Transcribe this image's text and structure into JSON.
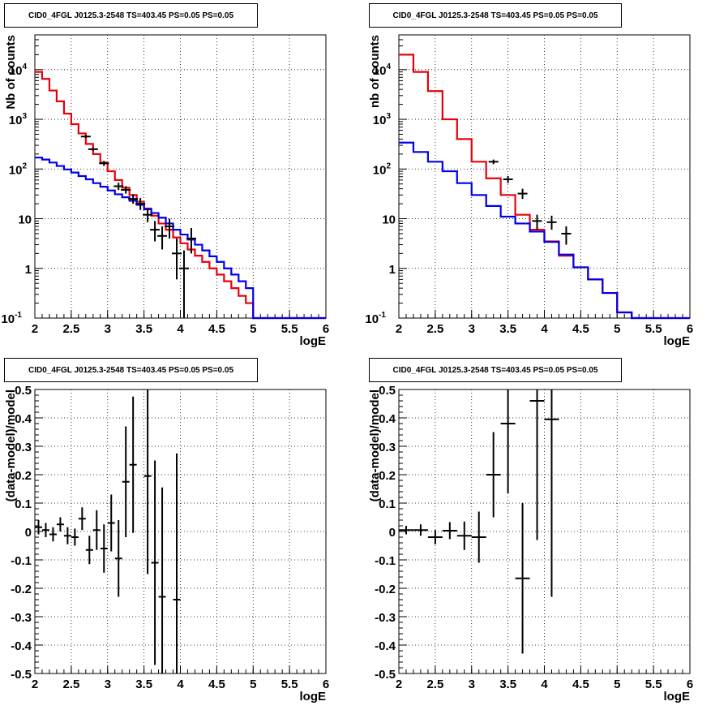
{
  "chart_data": [
    {
      "type": "line",
      "title": "CID0_4FGL J0125.3-2548 TS=403.45 PS=0.05 PS=0.05",
      "xlabel": "logE",
      "ylabel": "Nb of counts",
      "xlim": [
        2,
        6
      ],
      "ylim": [
        0.1,
        50000
      ],
      "yscale": "log",
      "grid": true,
      "xticks": [
        "2",
        "2.5",
        "3",
        "3.5",
        "4",
        "4.5",
        "5",
        "5.5",
        "6"
      ],
      "yticks": [
        "10^-1",
        "1",
        "10",
        "10^2",
        "10^3",
        "10^4"
      ],
      "bin_edges": [
        2.0,
        2.1,
        2.2,
        2.3,
        2.4,
        2.5,
        2.6,
        2.7,
        2.8,
        2.9,
        3.0,
        3.1,
        3.2,
        3.3,
        3.4,
        3.5,
        3.6,
        3.7,
        3.8,
        3.9,
        4.0,
        4.1,
        4.2,
        4.3,
        4.4,
        4.5,
        4.6,
        4.7,
        4.8,
        4.9,
        5.0,
        5.1,
        5.2,
        5.3,
        5.4,
        5.5,
        5.6,
        5.7,
        5.8,
        5.9,
        6.0
      ],
      "series": [
        {
          "color": "#e8000b",
          "values": [
            9000,
            6500,
            3800,
            2300,
            1300,
            800,
            520,
            320,
            200,
            135,
            90,
            60,
            42,
            30,
            22,
            16,
            11.5,
            8,
            6,
            4.2,
            3.2,
            2.4,
            1.8,
            1.35,
            1.0,
            0.75,
            0.55,
            0.4,
            0.28,
            0.2,
            0.1,
            0.1,
            0.1,
            0.1,
            0.1,
            0.1,
            0.1,
            0.1,
            0.1,
            0.1
          ]
        },
        {
          "color": "#0000e6",
          "values": [
            170,
            155,
            135,
            115,
            98,
            85,
            72,
            62,
            52,
            44,
            37,
            31,
            27,
            23,
            19,
            15.5,
            13,
            10.5,
            8,
            6,
            4.8,
            3.8,
            3.0,
            2.3,
            1.75,
            1.35,
            1.0,
            0.75,
            0.55,
            0.4,
            0.1,
            0.1,
            0.1,
            0.1,
            0.1,
            0.1,
            0.1,
            0.1,
            0.1,
            0.1
          ]
        }
      ],
      "data_points": [
        {
          "x": 2.7,
          "y": 450,
          "ylo": 420,
          "yhi": 480
        },
        {
          "x": 2.8,
          "y": 250,
          "ylo": 230,
          "yhi": 270
        },
        {
          "x": 2.95,
          "y": 130,
          "ylo": 115,
          "yhi": 145
        },
        {
          "x": 3.15,
          "y": 45,
          "ylo": 38,
          "yhi": 53
        },
        {
          "x": 3.25,
          "y": 38,
          "ylo": 32,
          "yhi": 45
        },
        {
          "x": 3.35,
          "y": 25,
          "ylo": 20,
          "yhi": 31
        },
        {
          "x": 3.45,
          "y": 20,
          "ylo": 15,
          "yhi": 26
        },
        {
          "x": 3.55,
          "y": 12,
          "ylo": 8.5,
          "yhi": 16
        },
        {
          "x": 3.65,
          "y": 6,
          "ylo": 3.5,
          "yhi": 9
        },
        {
          "x": 3.75,
          "y": 4.5,
          "ylo": 2.4,
          "yhi": 7
        },
        {
          "x": 3.85,
          "y": 7,
          "ylo": 4,
          "yhi": 10
        },
        {
          "x": 3.95,
          "y": 2,
          "ylo": 0.6,
          "yhi": 4
        },
        {
          "x": 4.05,
          "y": 1,
          "ylo": 0.1,
          "yhi": 2.3
        },
        {
          "x": 4.15,
          "y": 4,
          "ylo": 2,
          "yhi": 6.5
        }
      ]
    },
    {
      "type": "line",
      "title": "CID0_4FGL J0125.3-2548 TS=403.45 PS=0.05 PS=0.05",
      "xlabel": "logE",
      "ylabel": "nb of counts",
      "xlim": [
        2,
        6
      ],
      "ylim": [
        0.1,
        50000
      ],
      "yscale": "log",
      "grid": true,
      "xticks": [
        "2",
        "2.5",
        "3",
        "3.5",
        "4",
        "4.5",
        "5",
        "5.5",
        "6"
      ],
      "yticks": [
        "10^-1",
        "1",
        "10",
        "10^2",
        "10^3",
        "10^4"
      ],
      "bin_edges": [
        2.0,
        2.2,
        2.4,
        2.6,
        2.8,
        3.0,
        3.2,
        3.4,
        3.6,
        3.8,
        4.0,
        4.2,
        4.4,
        4.6,
        4.8,
        5.0,
        5.2,
        5.4,
        5.6,
        5.8,
        6.0
      ],
      "series": [
        {
          "color": "#e8000b",
          "values": [
            20000,
            9000,
            3700,
            1000,
            400,
            140,
            65,
            30,
            12,
            6,
            3.5,
            1.8,
            1.05,
            0.6,
            0.32,
            0.13,
            0.1,
            0.1,
            0.1,
            0.1
          ]
        },
        {
          "color": "#0000e6",
          "values": [
            340,
            220,
            140,
            90,
            52,
            30,
            18,
            11,
            8,
            5.5,
            3.4,
            1.9,
            1.05,
            0.6,
            0.32,
            0.13,
            0.1,
            0.1,
            0.1,
            0.1
          ]
        }
      ],
      "data_points": [
        {
          "x": 3.3,
          "y": 140,
          "ylo": 125,
          "yhi": 155
        },
        {
          "x": 3.5,
          "y": 62,
          "ylo": 52,
          "yhi": 72
        },
        {
          "x": 3.7,
          "y": 32,
          "ylo": 25,
          "yhi": 40
        },
        {
          "x": 3.9,
          "y": 9,
          "ylo": 6,
          "yhi": 12
        },
        {
          "x": 4.1,
          "y": 8.5,
          "ylo": 6,
          "yhi": 11.5
        },
        {
          "x": 4.3,
          "y": 5,
          "ylo": 3,
          "yhi": 7
        }
      ]
    },
    {
      "type": "scatter",
      "title": "CID0_4FGL J0125.3-2548 TS=403.45 PS=0.05 PS=0.05",
      "xlabel": "logE",
      "ylabel": "(data-model)/model",
      "xlim": [
        2,
        6
      ],
      "ylim": [
        -0.5,
        0.5
      ],
      "grid": true,
      "xticks": [
        "2",
        "2.5",
        "3",
        "3.5",
        "4",
        "4.5",
        "5",
        "5.5",
        "6"
      ],
      "yticks": [
        "-0.5",
        "-0.4",
        "-0.3",
        "-0.2",
        "-0.1",
        "0",
        "0.1",
        "0.2",
        "0.3",
        "0.4",
        "0.5"
      ],
      "x_halfwidth": 0.05,
      "points": [
        {
          "x": 2.05,
          "y": 0.015,
          "err": 0.025
        },
        {
          "x": 2.15,
          "y": 0.005,
          "err": 0.025
        },
        {
          "x": 2.25,
          "y": -0.01,
          "err": 0.025
        },
        {
          "x": 2.35,
          "y": 0.025,
          "err": 0.025
        },
        {
          "x": 2.45,
          "y": -0.015,
          "err": 0.03
        },
        {
          "x": 2.55,
          "y": -0.02,
          "err": 0.03
        },
        {
          "x": 2.65,
          "y": 0.045,
          "err": 0.04
        },
        {
          "x": 2.75,
          "y": -0.065,
          "err": 0.05
        },
        {
          "x": 2.85,
          "y": 0.005,
          "err": 0.07
        },
        {
          "x": 2.95,
          "y": -0.06,
          "err": 0.085
        },
        {
          "x": 3.05,
          "y": 0.03,
          "err": 0.1
        },
        {
          "x": 3.15,
          "y": -0.095,
          "err": 0.135
        },
        {
          "x": 3.25,
          "y": 0.175,
          "err": 0.195
        },
        {
          "x": 3.35,
          "y": 0.235,
          "err": 0.24
        },
        {
          "x": 3.55,
          "y": 0.195,
          "err": 0.345
        },
        {
          "x": 3.65,
          "y": -0.11,
          "err": 0.36
        },
        {
          "x": 3.75,
          "y": -0.23,
          "err": 0.385
        },
        {
          "x": 3.95,
          "y": -0.24,
          "err": 0.515
        }
      ]
    },
    {
      "type": "scatter",
      "title": "CID0_4FGL J0125.3-2548 TS=403.45 PS=0.05 PS=0.05",
      "xlabel": "logE",
      "ylabel": "(data-model)/model",
      "xlim": [
        2,
        6
      ],
      "ylim": [
        -0.5,
        0.5
      ],
      "grid": true,
      "xticks": [
        "2",
        "2.5",
        "3",
        "3.5",
        "4",
        "4.5",
        "5",
        "5.5",
        "6"
      ],
      "yticks": [
        "-0.5",
        "-0.4",
        "-0.3",
        "-0.2",
        "-0.1",
        "0",
        "0.1",
        "0.2",
        "0.3",
        "0.4",
        "0.5"
      ],
      "x_halfwidth": 0.1,
      "points": [
        {
          "x": 2.1,
          "y": 0.005,
          "err": 0.015
        },
        {
          "x": 2.3,
          "y": 0.005,
          "err": 0.02
        },
        {
          "x": 2.5,
          "y": -0.02,
          "err": 0.025
        },
        {
          "x": 2.7,
          "y": 0.003,
          "err": 0.03
        },
        {
          "x": 2.9,
          "y": -0.015,
          "err": 0.05
        },
        {
          "x": 3.1,
          "y": -0.02,
          "err": 0.09
        },
        {
          "x": 3.3,
          "y": 0.2,
          "err": 0.15
        },
        {
          "x": 3.5,
          "y": 0.38,
          "err": 0.245
        },
        {
          "x": 3.7,
          "y": -0.165,
          "err": 0.265
        },
        {
          "x": 3.9,
          "y": 0.46,
          "err": 0.49
        },
        {
          "x": 4.1,
          "y": 0.395,
          "err": 0.625
        }
      ]
    }
  ]
}
